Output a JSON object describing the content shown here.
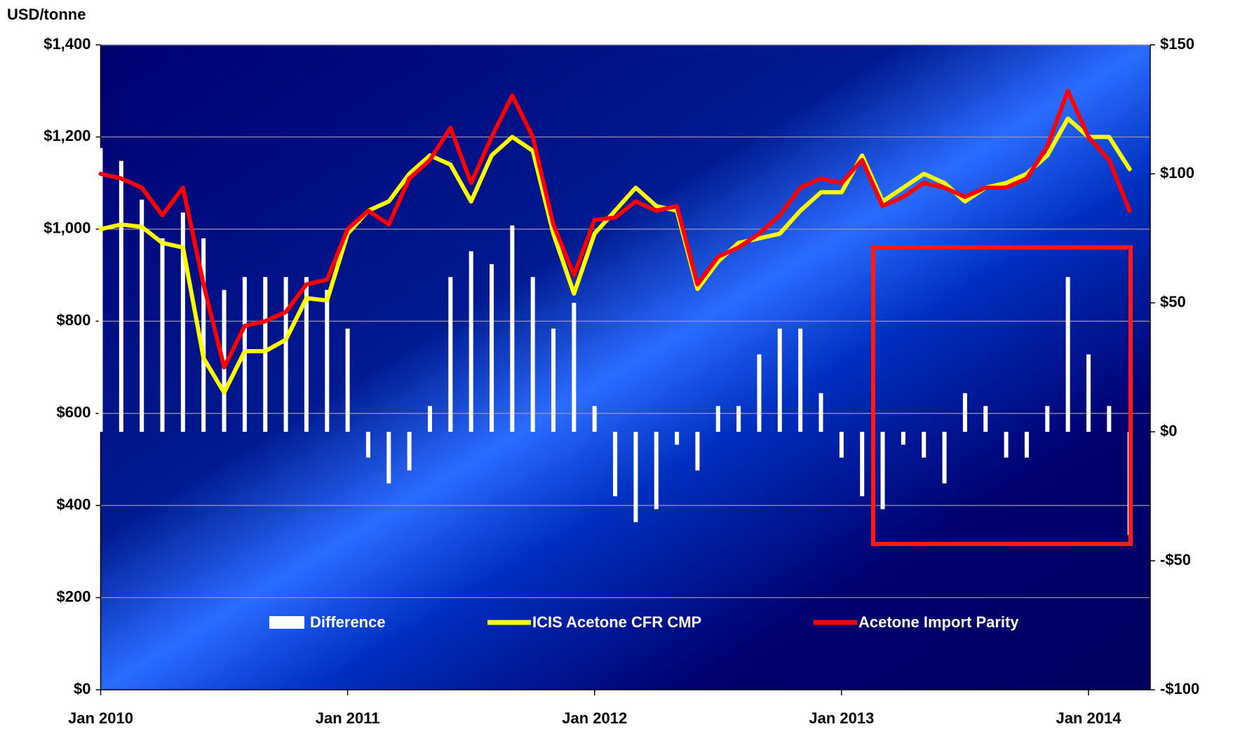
{
  "chart_data": {
    "type": "bar-line",
    "y_label": "USD/tonne",
    "x": [
      "2010-01",
      "2010-02",
      "2010-03",
      "2010-04",
      "2010-05",
      "2010-06",
      "2010-07",
      "2010-08",
      "2010-09",
      "2010-10",
      "2010-11",
      "2010-12",
      "2011-01",
      "2011-02",
      "2011-03",
      "2011-04",
      "2011-05",
      "2011-06",
      "2011-07",
      "2011-08",
      "2011-09",
      "2011-10",
      "2011-11",
      "2011-12",
      "2012-01",
      "2012-02",
      "2012-03",
      "2012-04",
      "2012-05",
      "2012-06",
      "2012-07",
      "2012-08",
      "2012-09",
      "2012-10",
      "2012-11",
      "2012-12",
      "2013-01",
      "2013-02",
      "2013-03",
      "2013-04",
      "2013-05",
      "2013-06",
      "2013-07",
      "2013-08",
      "2013-09",
      "2013-10",
      "2013-11",
      "2013-12",
      "2014-01",
      "2014-02",
      "2014-03"
    ],
    "xlim": [
      "2010-01",
      "2014-04"
    ],
    "xticks": [
      {
        "value": "2010-01",
        "label": "Jan 2010"
      },
      {
        "value": "2011-01",
        "label": "Jan 2011"
      },
      {
        "value": "2012-01",
        "label": "Jan 2012"
      },
      {
        "value": "2013-01",
        "label": "Jan 2013"
      },
      {
        "value": "2014-01",
        "label": "Jan 2014"
      }
    ],
    "ylim": [
      0,
      1400
    ],
    "yticks": [
      {
        "value": 0,
        "label": "$0"
      },
      {
        "value": 200,
        "label": "$200"
      },
      {
        "value": 400,
        "label": "$400"
      },
      {
        "value": 600,
        "label": "$600"
      },
      {
        "value": 800,
        "label": "$800"
      },
      {
        "value": 1000,
        "label": "$1,000"
      },
      {
        "value": 1200,
        "label": "$1,200"
      },
      {
        "value": 1400,
        "label": "$1,400"
      }
    ],
    "y2lim": [
      -100,
      150
    ],
    "y2ticks": [
      {
        "value": -100,
        "label": "-$100"
      },
      {
        "value": -50,
        "label": "-$50"
      },
      {
        "value": 0,
        "label": "$0"
      },
      {
        "value": 50,
        "label": "$50"
      },
      {
        "value": 100,
        "label": "$100"
      },
      {
        "value": 150,
        "label": "$150"
      }
    ],
    "grid": true,
    "legend": "bottom",
    "series": [
      {
        "name": "Difference",
        "type": "bar",
        "axis": "y2",
        "color": "#ffffff",
        "values": [
          110,
          105,
          90,
          75,
          85,
          75,
          55,
          60,
          60,
          60,
          60,
          55,
          40,
          -10,
          -20,
          -15,
          10,
          60,
          70,
          65,
          80,
          60,
          40,
          50,
          10,
          -25,
          -35,
          -30,
          -5,
          -15,
          10,
          10,
          30,
          40,
          40,
          15,
          -10,
          -25,
          -30,
          -5,
          -10,
          -20,
          15,
          10,
          -10,
          -10,
          10,
          60,
          30,
          10,
          -40
        ]
      },
      {
        "name": "ICIS Acetone CFR CMP",
        "type": "line",
        "color": "#ffff00",
        "values": [
          1000,
          1010,
          1005,
          970,
          960,
          720,
          645,
          735,
          735,
          760,
          850,
          845,
          990,
          1040,
          1060,
          1120,
          1160,
          1140,
          1060,
          1160,
          1200,
          1170,
          990,
          860,
          990,
          1040,
          1090,
          1050,
          1040,
          870,
          930,
          970,
          980,
          990,
          1040,
          1080,
          1080,
          1160,
          1060,
          1090,
          1120,
          1100,
          1060,
          1090,
          1100,
          1120,
          1160,
          1240,
          1200,
          1200,
          1130
        ]
      },
      {
        "name": "Acetone Import Parity",
        "type": "line",
        "color": "#ff0000",
        "values": [
          1120,
          1110,
          1090,
          1030,
          1090,
          880,
          700,
          790,
          800,
          820,
          880,
          890,
          1000,
          1040,
          1010,
          1110,
          1150,
          1220,
          1100,
          1200,
          1290,
          1200,
          1010,
          900,
          1020,
          1025,
          1060,
          1040,
          1050,
          880,
          940,
          960,
          990,
          1030,
          1090,
          1110,
          1100,
          1150,
          1050,
          1070,
          1100,
          1090,
          1070,
          1090,
          1090,
          1110,
          1180,
          1300,
          1200,
          1150,
          1040
        ]
      }
    ]
  }
}
